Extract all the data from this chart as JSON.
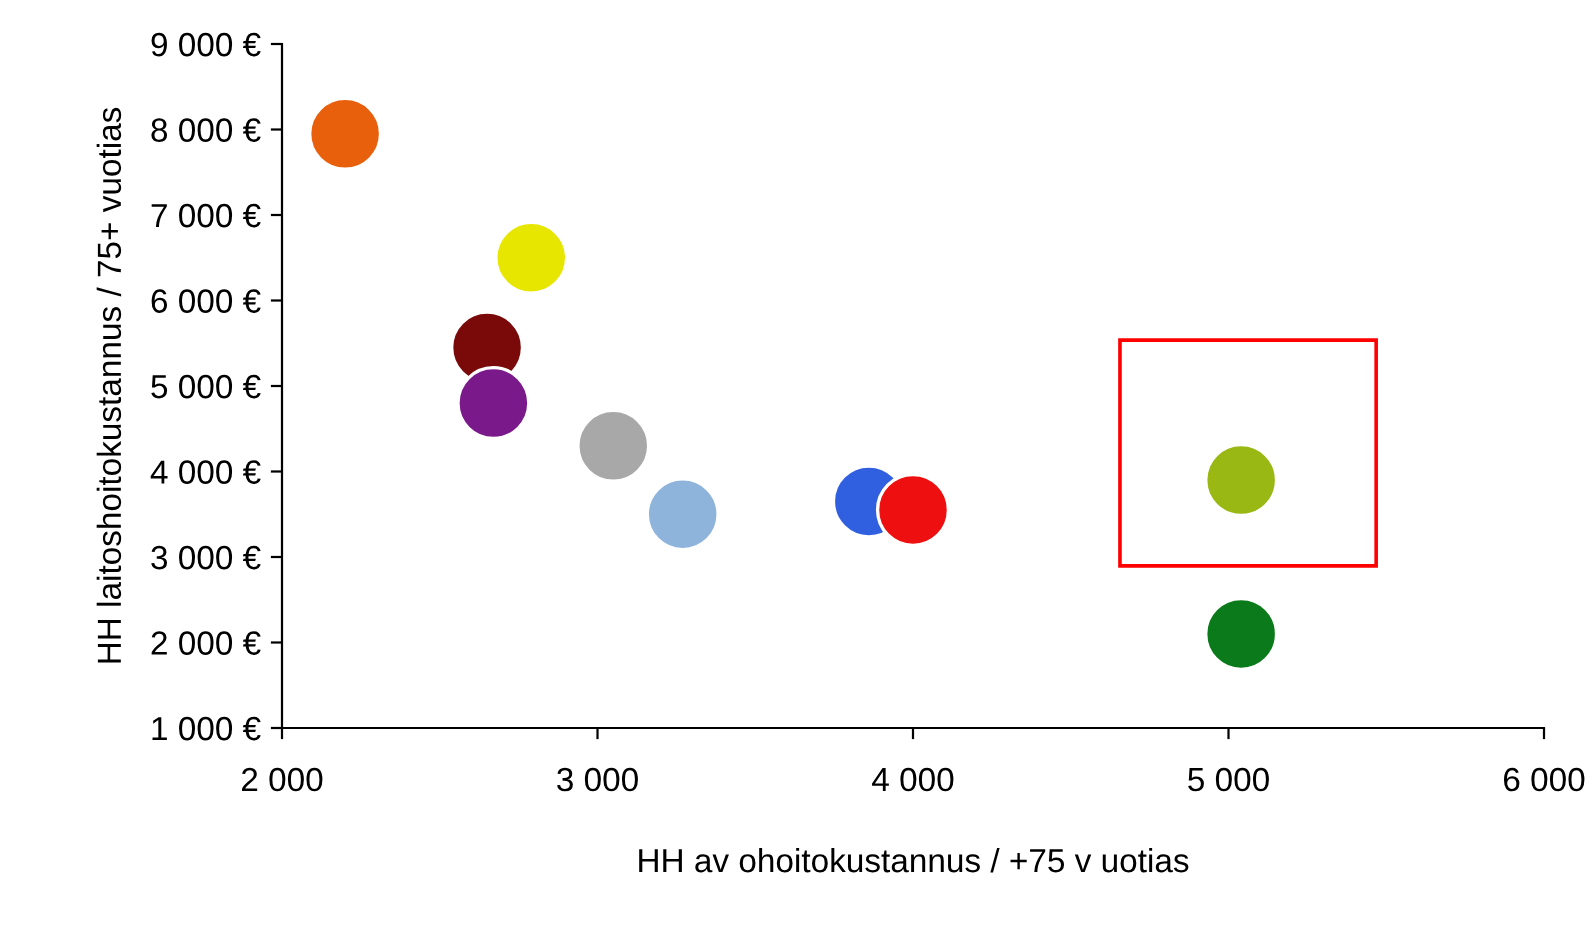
{
  "chart_data": {
    "type": "scatter",
    "xlabel": "HH av ohoitokustannus / +75 v uotias",
    "ylabel": "HH laitoshoitokustannus / 75+ vuotias",
    "x": [
      2200,
      2790,
      2650,
      2670,
      3050,
      3270,
      3860,
      4000,
      5040,
      5040
    ],
    "values": [
      7950,
      6500,
      5450,
      4800,
      4300,
      3500,
      3650,
      3550,
      3900,
      2100
    ],
    "colors": [
      "#e8600c",
      "#e6e600",
      "#7a0a0a",
      "#7a1a8a",
      "#a8a8a8",
      "#8fb4dc",
      "#3060e0",
      "#ee1010",
      "#9ab814",
      "#0a7a1a"
    ],
    "marker": "circle",
    "grid": false,
    "legend": false,
    "xlim": [
      2000,
      6000
    ],
    "xticks": [
      {
        "value": 2000,
        "label": "2 000"
      },
      {
        "value": 3000,
        "label": "3 000"
      },
      {
        "value": 4000,
        "label": "4 000"
      },
      {
        "value": 5000,
        "label": "5 000"
      },
      {
        "value": 6000,
        "label": "6 000"
      }
    ],
    "ylim": [
      1000,
      9000
    ],
    "yticks": [
      {
        "value": 1000,
        "label": "1 000 €"
      },
      {
        "value": 2000,
        "label": "2 000 €"
      },
      {
        "value": 3000,
        "label": "3 000 €"
      },
      {
        "value": 4000,
        "label": "4 000 €"
      },
      {
        "value": 5000,
        "label": "5 000 €"
      },
      {
        "value": 6000,
        "label": "6 000 €"
      },
      {
        "value": 7000,
        "label": "7 000 €"
      },
      {
        "value": 8000,
        "label": "8 000 €"
      },
      {
        "value": 9000,
        "label": "9 000 €"
      }
    ]
  }
}
